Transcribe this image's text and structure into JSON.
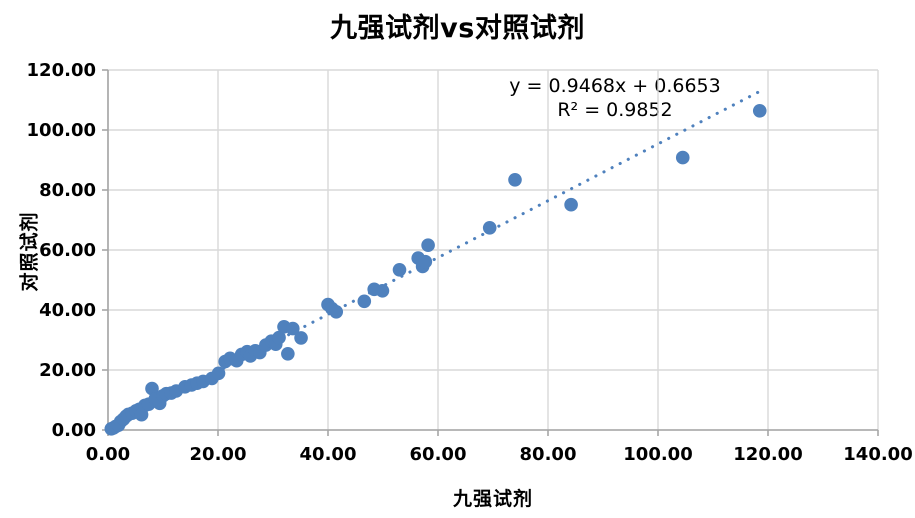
{
  "title": "九强试剂vs对照试剂",
  "equation": {
    "line1": "y = 0.9468x + 0.6653",
    "line2": "R² = 0.9852"
  },
  "colors": {
    "marker": "#4f81bd",
    "trend": "#4f81bd",
    "grid": "#d9d9d9",
    "axis": "#a6a6a6",
    "text": "#000000"
  },
  "chart_data": {
    "type": "scatter",
    "title": "九强试剂vs对照试剂",
    "xlabel": "九强试剂",
    "ylabel": "对照试剂",
    "xlim": [
      0,
      140
    ],
    "ylim": [
      0,
      120
    ],
    "x_tick_step": 20,
    "y_tick_step": 20,
    "x_tick_labels": [
      "0.00",
      "20.00",
      "40.00",
      "60.00",
      "80.00",
      "100.00",
      "120.00",
      "140.00"
    ],
    "y_tick_labels": [
      "0.00",
      "20.00",
      "40.00",
      "60.00",
      "80.00",
      "100.00",
      "120.00"
    ],
    "grid": true,
    "legend": false,
    "series_name": "九强试剂 vs 对照试剂",
    "points": [
      [
        0.6,
        0.4
      ],
      [
        1.0,
        0.7
      ],
      [
        1.4,
        1.2
      ],
      [
        1.9,
        1.6
      ],
      [
        2.3,
        2.8
      ],
      [
        2.8,
        3.6
      ],
      [
        3.3,
        4.6
      ],
      [
        3.7,
        5.2
      ],
      [
        4.4,
        5.6
      ],
      [
        5.1,
        6.4
      ],
      [
        5.7,
        6.9
      ],
      [
        6.1,
        5.1
      ],
      [
        6.7,
        8.2
      ],
      [
        7.4,
        8.6
      ],
      [
        8.0,
        13.8
      ],
      [
        8.6,
        10.4
      ],
      [
        9.4,
        8.9
      ],
      [
        10.0,
        11.4
      ],
      [
        10.6,
        12.1
      ],
      [
        11.5,
        12.3
      ],
      [
        12.4,
        13.0
      ],
      [
        14.0,
        14.4
      ],
      [
        15.2,
        15.0
      ],
      [
        16.2,
        15.6
      ],
      [
        17.3,
        16.2
      ],
      [
        18.9,
        17.2
      ],
      [
        20.1,
        18.9
      ],
      [
        21.3,
        22.8
      ],
      [
        22.2,
        23.9
      ],
      [
        23.4,
        23.1
      ],
      [
        24.3,
        25.2
      ],
      [
        25.3,
        26.1
      ],
      [
        25.9,
        24.7
      ],
      [
        26.8,
        26.4
      ],
      [
        27.6,
        25.8
      ],
      [
        28.7,
        28.3
      ],
      [
        29.7,
        29.6
      ],
      [
        30.5,
        28.6
      ],
      [
        31.1,
        30.8
      ],
      [
        32.0,
        34.4
      ],
      [
        33.6,
        33.8
      ],
      [
        32.7,
        25.4
      ],
      [
        35.1,
        30.7
      ],
      [
        40.0,
        41.8
      ],
      [
        40.7,
        40.5
      ],
      [
        41.5,
        39.4
      ],
      [
        46.6,
        42.9
      ],
      [
        48.4,
        46.9
      ],
      [
        49.9,
        46.4
      ],
      [
        53.0,
        53.4
      ],
      [
        56.4,
        57.3
      ],
      [
        57.2,
        54.5
      ],
      [
        57.7,
        56.1
      ],
      [
        58.2,
        61.6
      ],
      [
        69.4,
        67.4
      ],
      [
        74.0,
        83.4
      ],
      [
        84.2,
        75.1
      ],
      [
        104.5,
        90.8
      ],
      [
        118.5,
        106.4
      ]
    ],
    "trendline": {
      "equation": "y = 0.9468x + 0.6653",
      "slope": 0.9468,
      "intercept": 0.6653,
      "r_squared": 0.9852,
      "style": "dotted",
      "x_range": [
        0.5,
        118.5
      ]
    }
  }
}
